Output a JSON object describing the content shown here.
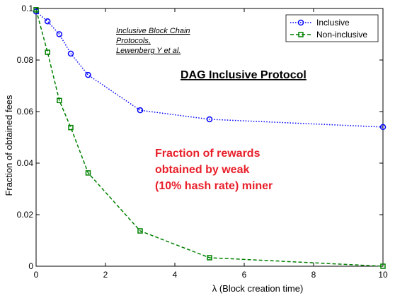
{
  "chart_data": {
    "type": "line",
    "title": "",
    "xlabel": "λ (Block creation time)",
    "ylabel": "Fraction of obtained fees",
    "xlim": [
      0,
      10
    ],
    "ylim": [
      0,
      0.1
    ],
    "x_ticks": [
      0,
      2,
      4,
      6,
      8,
      10
    ],
    "x_tick_labels": [
      "0",
      "2",
      "4",
      "6",
      "8",
      "10"
    ],
    "y_ticks": [
      0,
      0.02,
      0.04,
      0.06,
      0.08,
      0.1
    ],
    "y_tick_labels": [
      "0",
      "0.02",
      "0.04",
      "0.06",
      "0.08",
      "0.1"
    ],
    "grid": false,
    "legend_position": "top-right",
    "series": [
      {
        "name": "Inclusive",
        "color": "#0000ff",
        "line_style": "dotted",
        "marker": "circle",
        "x": [
          0,
          0.33,
          0.67,
          1,
          1.5,
          3,
          5,
          10
        ],
        "y": [
          0.0988,
          0.095,
          0.09,
          0.0825,
          0.0742,
          0.0605,
          0.057,
          0.054
        ]
      },
      {
        "name": "Non-inclusive",
        "color": "#008000",
        "line_style": "dashed",
        "marker": "square",
        "x": [
          0,
          0.33,
          0.67,
          1,
          1.5,
          3,
          5,
          10
        ],
        "y": [
          0.0995,
          0.083,
          0.0643,
          0.0538,
          0.0362,
          0.0137,
          0.0033,
          0.0
        ]
      }
    ],
    "annotations": {
      "citation": [
        "Inclusive Block Chain",
        "Protocols,",
        "Lewenberg Y et al."
      ],
      "heading": "DAG Inclusive Protocol",
      "note": [
        "Fraction of rewards",
        "obtained by weak",
        "(10% hash rate) miner"
      ],
      "note_color": "#e8202a"
    }
  }
}
